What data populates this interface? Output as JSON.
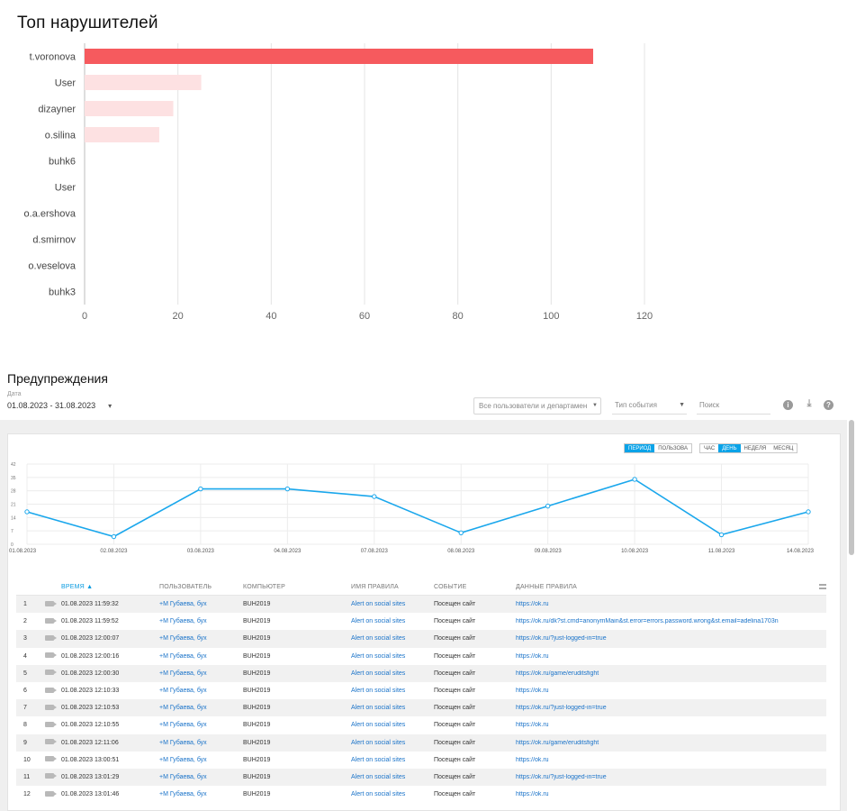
{
  "top_violators": {
    "title": "Топ нарушителей"
  },
  "chart_data": [
    {
      "type": "bar",
      "orientation": "horizontal",
      "title": "Топ нарушителей",
      "categories": [
        "t.voronova",
        "User",
        "dizayner",
        "o.silina",
        "buhk6",
        "User",
        "o.a.ershova",
        "d.smirnov",
        "o.veselova",
        "buhk3"
      ],
      "values": [
        109,
        25,
        19,
        16,
        0,
        0,
        0,
        0,
        0,
        0
      ],
      "xlim": [
        0,
        120
      ],
      "xticks": [
        0,
        20,
        40,
        60,
        80,
        100,
        120
      ],
      "grid": true,
      "colors": {
        "highlight": "#f65a5e",
        "normal": "#fde1e2"
      }
    },
    {
      "type": "line",
      "x": [
        "01.08.2023",
        "02.08.2023",
        "03.08.2023",
        "04.08.2023",
        "07.08.2023",
        "08.08.2023",
        "09.08.2023",
        "10.08.2023",
        "11.08.2023",
        "14.08.2023"
      ],
      "values": [
        17,
        4,
        29,
        29,
        25,
        6,
        20,
        34,
        5,
        17
      ],
      "ylim": [
        0,
        42
      ],
      "yticks": [
        0,
        7,
        14,
        21,
        28,
        35,
        42
      ],
      "grid": true,
      "color": "#1aa7ec"
    }
  ],
  "warnings": {
    "title": "Предупреждения",
    "date_label": "Дата",
    "date_value": "01.08.2023 - 31.08.2023",
    "users_filter_placeholder": "Все пользователи и департамен",
    "event_type_placeholder": "Тип события",
    "search_placeholder": "Поиск",
    "period_toggle": [
      {
        "label": "ПЕРИОД",
        "active": true
      },
      {
        "label": "ПОЛЬЗОВА",
        "active": false
      }
    ],
    "scale_toggle": [
      {
        "label": "ЧАС",
        "active": false
      },
      {
        "label": "ДЕНЬ",
        "active": true
      },
      {
        "label": "НЕДЕЛЯ",
        "active": false
      },
      {
        "label": "МЕСЯЦ",
        "active": false
      }
    ]
  },
  "table": {
    "columns": {
      "time": "ВРЕМЯ",
      "user": "ПОЛЬЗОВАТЕЛЬ",
      "computer": "КОМПЬЮТЕР",
      "rule_name": "ИМЯ ПРАВИЛА",
      "event": "СОБЫТИЕ",
      "rule_data": "ДАННЫЕ ПРАВИЛА"
    },
    "sort_arrow": "▲",
    "rows": [
      {
        "n": "1",
        "time": "01.08.2023 11:59:32",
        "user": "+М Губаева, бух",
        "computer": "BUH2019",
        "rule": "Alert on social sites",
        "event": "Посещен сайт",
        "data": "https://ok.ru"
      },
      {
        "n": "2",
        "time": "01.08.2023 11:59:52",
        "user": "+М Губаева, бух",
        "computer": "BUH2019",
        "rule": "Alert on social sites",
        "event": "Посещен сайт",
        "data": "https://ok.ru/dk?st.cmd=anonymMain&st.error=errors.password.wrong&st.email=adelina1703n"
      },
      {
        "n": "3",
        "time": "01.08.2023 12:00:07",
        "user": "+М Губаева, бух",
        "computer": "BUH2019",
        "rule": "Alert on social sites",
        "event": "Посещен сайт",
        "data": "https://ok.ru/?just-logged-in=true"
      },
      {
        "n": "4",
        "time": "01.08.2023 12:00:16",
        "user": "+М Губаева, бух",
        "computer": "BUH2019",
        "rule": "Alert on social sites",
        "event": "Посещен сайт",
        "data": "https://ok.ru"
      },
      {
        "n": "5",
        "time": "01.08.2023 12:00:30",
        "user": "+М Губаева, бух",
        "computer": "BUH2019",
        "rule": "Alert on social sites",
        "event": "Посещен сайт",
        "data": "https://ok.ru/game/eruditsfight"
      },
      {
        "n": "6",
        "time": "01.08.2023 12:10:33",
        "user": "+М Губаева, бух",
        "computer": "BUH2019",
        "rule": "Alert on social sites",
        "event": "Посещен сайт",
        "data": "https://ok.ru"
      },
      {
        "n": "7",
        "time": "01.08.2023 12:10:53",
        "user": "+М Губаева, бух",
        "computer": "BUH2019",
        "rule": "Alert on social sites",
        "event": "Посещен сайт",
        "data": "https://ok.ru/?just-logged-in=true"
      },
      {
        "n": "8",
        "time": "01.08.2023 12:10:55",
        "user": "+М Губаева, бух",
        "computer": "BUH2019",
        "rule": "Alert on social sites",
        "event": "Посещен сайт",
        "data": "https://ok.ru"
      },
      {
        "n": "9",
        "time": "01.08.2023 12:11:06",
        "user": "+М Губаева, бух",
        "computer": "BUH2019",
        "rule": "Alert on social sites",
        "event": "Посещен сайт",
        "data": "https://ok.ru/game/eruditsfight"
      },
      {
        "n": "10",
        "time": "01.08.2023 13:00:51",
        "user": "+М Губаева, бух",
        "computer": "BUH2019",
        "rule": "Alert on social sites",
        "event": "Посещен сайт",
        "data": "https://ok.ru"
      },
      {
        "n": "11",
        "time": "01.08.2023 13:01:29",
        "user": "+М Губаева, бух",
        "computer": "BUH2019",
        "rule": "Alert on social sites",
        "event": "Посещен сайт",
        "data": "https://ok.ru/?just-logged-in=true"
      },
      {
        "n": "12",
        "time": "01.08.2023 13:01:46",
        "user": "+М Губаева, бух",
        "computer": "BUH2019",
        "rule": "Alert on social sites",
        "event": "Посещен сайт",
        "data": "https://ok.ru"
      }
    ]
  },
  "icons": {
    "info": "info-icon",
    "download": "download-icon",
    "help": "help-icon",
    "camera": "camera-icon",
    "columns_menu": "columns-menu-icon"
  }
}
